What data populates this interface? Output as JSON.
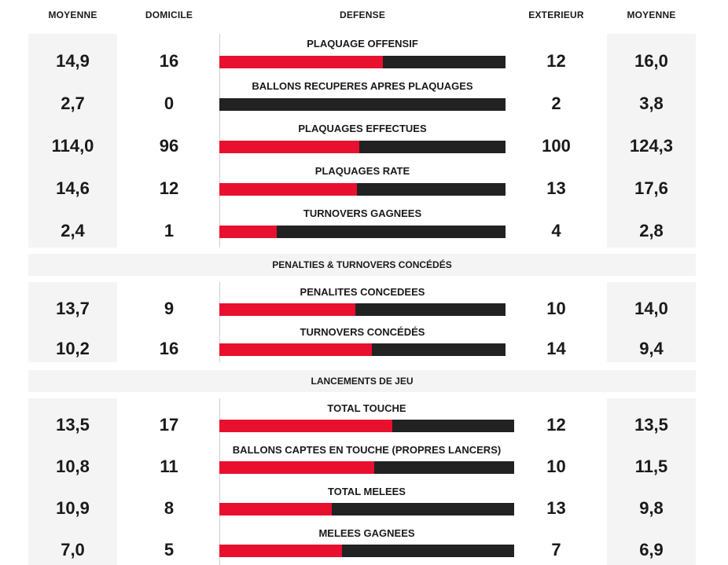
{
  "header": {
    "home_avg": "MOYENNE",
    "home": "DOMICILE",
    "title": "DEFENSE",
    "away": "EXTERIEUR",
    "away_avg": "MOYENNE"
  },
  "groups": [
    {
      "section": "",
      "rows": [
        {
          "label": "PLAQUAGE OFFENSIF",
          "home_avg": "14,9",
          "home": "16",
          "away": "12",
          "away_avg": "16,0",
          "home_share": 0.571
        },
        {
          "label": "BALLONS RECUPERES APRES PLAQUAGES",
          "home_avg": "2,7",
          "home": "0",
          "away": "2",
          "away_avg": "3,8",
          "home_share": 0
        },
        {
          "label": "PLAQUAGES EFFECTUES",
          "home_avg": "114,0",
          "home": "96",
          "away": "100",
          "away_avg": "124,3",
          "home_share": 0.49
        },
        {
          "label": "PLAQUAGES RATE",
          "home_avg": "14,6",
          "home": "12",
          "away": "13",
          "away_avg": "17,6",
          "home_share": 0.48
        },
        {
          "label": "TURNOVERS GAGNEES",
          "home_avg": "2,4",
          "home": "1",
          "away": "4",
          "away_avg": "2,8",
          "home_share": 0.2
        }
      ]
    },
    {
      "section": "PENALTIES & TURNOVERS CONCÉDÉS",
      "rows": [
        {
          "label": "PENALITES CONCEDEES",
          "home_avg": "13,7",
          "home": "9",
          "away": "10",
          "away_avg": "14,0",
          "home_share": 0.474
        },
        {
          "label": "TURNOVERS CONCÉDÉS",
          "home_avg": "10,2",
          "home": "16",
          "away": "14",
          "away_avg": "9,4",
          "home_share": 0.533
        }
      ]
    },
    {
      "section": "LANCEMENTS DE JEU",
      "rows": [
        {
          "label": "TOTAL TOUCHE",
          "home_avg": "13,5",
          "home": "17",
          "away": "12",
          "away_avg": "13,5",
          "home_share": 0.586
        },
        {
          "label": "BALLONS CAPTES EN TOUCHE (PROPRES LANCERS)",
          "home_avg": "10,8",
          "home": "11",
          "away": "10",
          "away_avg": "11,5",
          "home_share": 0.524
        },
        {
          "label": "TOTAL MELEES",
          "home_avg": "10,9",
          "home": "8",
          "away": "13",
          "away_avg": "9,8",
          "home_share": 0.381
        },
        {
          "label": "MELEES GAGNEES",
          "home_avg": "7,0",
          "home": "5",
          "away": "7",
          "away_avg": "6,9",
          "home_share": 0.417
        }
      ]
    }
  ]
}
